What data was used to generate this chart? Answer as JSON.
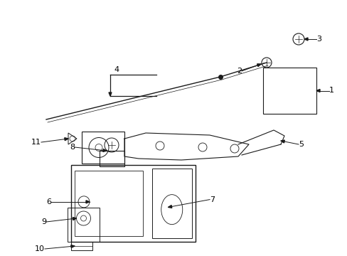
{
  "bg_color": "#ffffff",
  "fig_width": 4.89,
  "fig_height": 3.6,
  "dpi": 100,
  "label_fontsize": 8,
  "line_color": "#1a1a1a",
  "text_color": "#000000"
}
